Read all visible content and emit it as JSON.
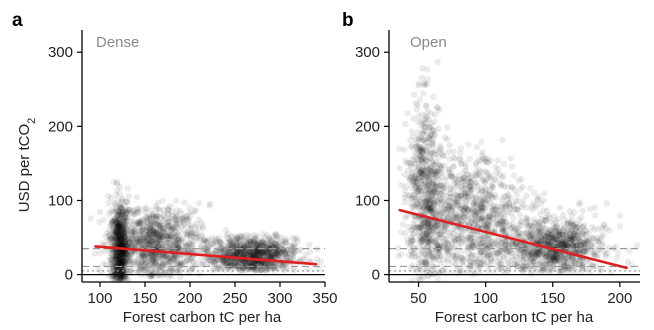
{
  "colors": {
    "points": "#000000",
    "regression": "#e02020",
    "panel_title": "#8a8a8a",
    "reference_line": "#000000",
    "dashed_reference": "#9a9a9a"
  },
  "ylabel_main": "USD per tCO",
  "ylabel_sub": "2",
  "chart_data": [
    {
      "type": "scatter",
      "panel_letter": "a",
      "title": "Dense",
      "xlabel": "Forest carbon tC per ha",
      "ylabel": "USD per tCO2",
      "xlim": [
        80,
        350
      ],
      "ylim": [
        -10,
        330
      ],
      "xticks": [
        100,
        150,
        200,
        250,
        300,
        350
      ],
      "yticks": [
        0,
        100,
        200,
        300
      ],
      "grid": false,
      "clusters": [
        {
          "x_center": 122,
          "x_spread": 5,
          "y_center": 28,
          "y_spread": 38,
          "y_min": -8,
          "y_max": 125
        },
        {
          "x_center": 162,
          "x_spread": 24,
          "y_center": 40,
          "y_spread": 28,
          "y_min": -3,
          "y_max": 100
        },
        {
          "x_center": 268,
          "x_spread": 26,
          "y_center": 27,
          "y_spread": 15,
          "y_min": 5,
          "y_max": 55
        }
      ],
      "regression": {
        "x": [
          95,
          340
        ],
        "y": [
          38,
          14
        ]
      },
      "reference_lines": [
        {
          "y": 0,
          "style": "solid"
        },
        {
          "y": 35,
          "style": "dashed"
        },
        {
          "y": 11,
          "style": "dashed"
        },
        {
          "y": 5,
          "style": "dotted"
        }
      ]
    },
    {
      "type": "scatter",
      "panel_letter": "b",
      "title": "Open",
      "xlabel": "Forest carbon tC per ha",
      "ylabel": "USD per tCO2",
      "xlim": [
        28,
        215
      ],
      "ylim": [
        -10,
        330
      ],
      "xticks": [
        50,
        100,
        150,
        200
      ],
      "yticks": [
        0,
        100,
        200,
        300
      ],
      "grid": false,
      "clusters": [
        {
          "x_center": 55,
          "x_spread": 7,
          "y_center": 110,
          "y_spread": 65,
          "y_min": -8,
          "y_max": 295
        },
        {
          "x_center": 90,
          "x_spread": 20,
          "y_center": 75,
          "y_spread": 42,
          "y_min": 0,
          "y_max": 230
        },
        {
          "x_center": 150,
          "x_spread": 20,
          "y_center": 38,
          "y_spread": 20,
          "y_min": 2,
          "y_max": 110
        }
      ],
      "regression": {
        "x": [
          36,
          205
        ],
        "y": [
          87,
          9
        ]
      },
      "reference_lines": [
        {
          "y": 0,
          "style": "solid"
        },
        {
          "y": 35,
          "style": "dashed"
        },
        {
          "y": 11,
          "style": "dashed"
        },
        {
          "y": 5,
          "style": "dotted"
        }
      ]
    }
  ]
}
